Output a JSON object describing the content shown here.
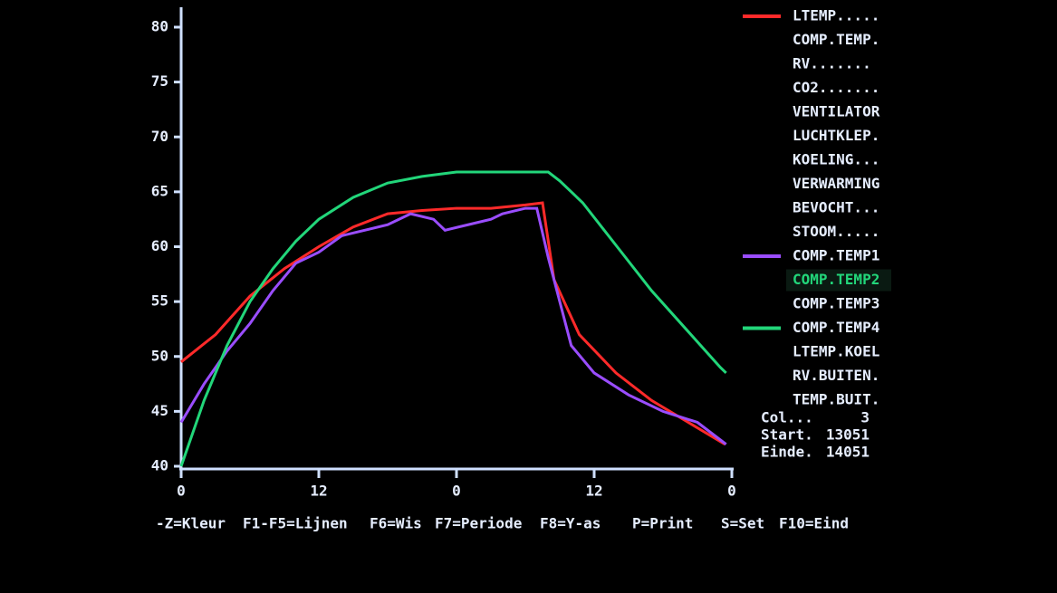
{
  "chart_data": {
    "type": "line",
    "xlim": [
      0,
      48
    ],
    "xticks": [
      0,
      12,
      {
        "value": 24,
        "label": "0"
      },
      {
        "value": 36,
        "label": "12"
      },
      {
        "value": 48,
        "label": "0"
      }
    ],
    "ylim": [
      40,
      80
    ],
    "yticks": [
      40,
      45,
      50,
      55,
      60,
      65,
      70,
      75,
      80
    ],
    "series": [
      {
        "name": "LTEMP.....",
        "color": "#ff2a2a",
        "x": [
          0,
          3,
          6,
          9,
          12,
          15,
          18,
          21,
          24,
          27,
          30,
          31.5,
          32.5,
          34.7,
          37.9,
          41,
          44.2,
          47.4
        ],
        "values": [
          49.5,
          52,
          55.5,
          58,
          60,
          61.8,
          63,
          63.3,
          63.5,
          63.5,
          63.8,
          64,
          57,
          52,
          48.5,
          46,
          44,
          42
        ]
      },
      {
        "name": "COMP.TEMP1",
        "color": "#9a4dff",
        "x": [
          0,
          2,
          4,
          6,
          8,
          10,
          12,
          14,
          16,
          18,
          20,
          22,
          23,
          25,
          27,
          28,
          30,
          31,
          32,
          33,
          34,
          36,
          39,
          42,
          45,
          47.5
        ],
        "values": [
          44,
          47.5,
          50.5,
          53,
          56,
          58.5,
          59.5,
          61,
          61.5,
          62,
          63,
          62.5,
          61.5,
          62,
          62.5,
          63,
          63.5,
          63.5,
          59,
          55,
          51,
          48.5,
          46.5,
          45,
          44,
          42
        ]
      },
      {
        "name": "COMP.TEMP4",
        "color": "#22d67a",
        "x": [
          0,
          2,
          4,
          6,
          8,
          10,
          12,
          15,
          18,
          21,
          24,
          27,
          30,
          32,
          33,
          35,
          38,
          41,
          44,
          47,
          47.5
        ],
        "values": [
          40,
          46,
          51,
          55,
          58,
          60.5,
          62.5,
          64.5,
          65.8,
          66.4,
          66.8,
          66.8,
          66.8,
          66.8,
          66,
          64,
          60,
          56,
          52.5,
          49,
          48.5
        ]
      }
    ]
  },
  "panel_items": [
    "LTEMP.....",
    "COMP.TEMP.",
    "RV.......",
    "CO2.......",
    "VENTILATOR",
    "LUCHTKLEP.",
    "KOELING...",
    "VERWARMING",
    "BEVOCHT...",
    "STOOM.....",
    "COMP.TEMP1",
    "COMP.TEMP2",
    "COMP.TEMP3",
    "COMP.TEMP4",
    "LTEMP.KOEL",
    "RV.BUITEN.",
    "TEMP.BUIT."
  ],
  "highlighted_item": "COMP.TEMP2",
  "info": [
    [
      "Col...",
      "3"
    ],
    [
      "Start.",
      "13051"
    ],
    [
      "Einde.",
      "14051"
    ]
  ],
  "menu": [
    "-Z=Kleur",
    "F1-F5=Lijnen",
    "F6=Wis",
    "F7=Periode",
    "F8=Y-as",
    "P=Print",
    "S=Set",
    "F10=Eind"
  ]
}
